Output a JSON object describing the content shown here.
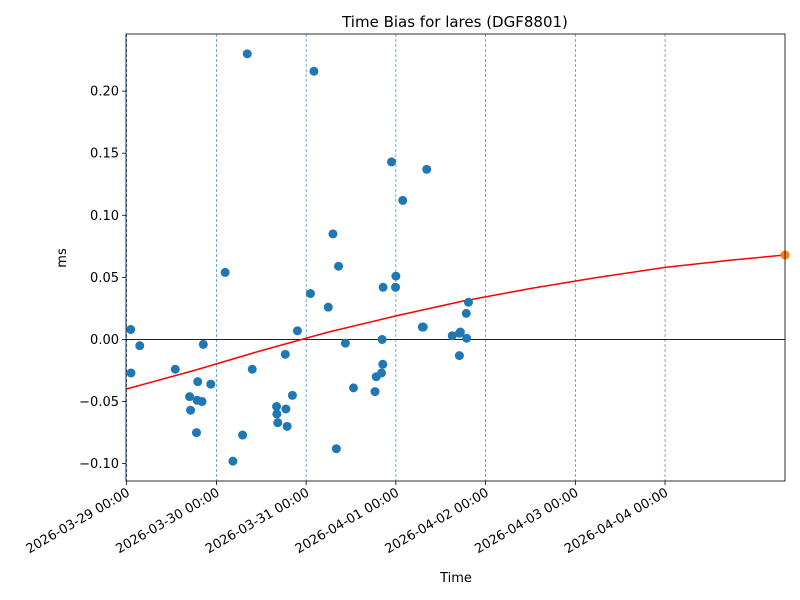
{
  "chart_data": {
    "type": "scatter",
    "title": "Time Bias for lares (DGF8801)",
    "xlabel": "Time",
    "ylabel": "ms",
    "x_axis_type": "datetime",
    "xlim": [
      "2026-03-28 23:49",
      "2026-04-05 08:05"
    ],
    "ylim": [
      -0.114,
      0.246
    ],
    "x_ticks": [
      "2026-03-29 00:00",
      "2026-03-30 00:00",
      "2026-03-31 00:00",
      "2026-04-01 00:00",
      "2026-04-02 00:00",
      "2026-04-03 00:00",
      "2026-04-04 00:00"
    ],
    "y_ticks": [
      -0.1,
      -0.05,
      0.0,
      0.05,
      0.1,
      0.15,
      0.2
    ],
    "y_tick_labels": [
      "−0.10",
      "−0.05",
      "0.00",
      "0.05",
      "0.10",
      "0.15",
      "0.20"
    ],
    "grid": "vertical dashed lines at x ticks",
    "zero_line": true,
    "colors": {
      "points": "#1f77b4",
      "fit": "#ff0000",
      "endpoint": "#ff7f0e",
      "grid": "#1f77b4"
    },
    "series": [
      {
        "kind": "points",
        "points": [
          {
            "x": "2026-03-29 01:05",
            "y": 0.008
          },
          {
            "x": "2026-03-29 01:10",
            "y": -0.027
          },
          {
            "x": "2026-03-29 03:30",
            "y": -0.005
          },
          {
            "x": "2026-03-29 13:00",
            "y": -0.024
          },
          {
            "x": "2026-03-29 16:50",
            "y": -0.046
          },
          {
            "x": "2026-03-29 17:05",
            "y": -0.057
          },
          {
            "x": "2026-03-29 18:40",
            "y": -0.075
          },
          {
            "x": "2026-03-29 18:50",
            "y": -0.049
          },
          {
            "x": "2026-03-29 19:00",
            "y": -0.034
          },
          {
            "x": "2026-03-29 20:10",
            "y": -0.05
          },
          {
            "x": "2026-03-29 20:30",
            "y": -0.004
          },
          {
            "x": "2026-03-29 22:30",
            "y": -0.036
          },
          {
            "x": "2026-03-30 02:20",
            "y": 0.054
          },
          {
            "x": "2026-03-30 04:25",
            "y": -0.098
          },
          {
            "x": "2026-03-30 07:00",
            "y": -0.077
          },
          {
            "x": "2026-03-30 08:15",
            "y": 0.23
          },
          {
            "x": "2026-03-30 09:35",
            "y": -0.024
          },
          {
            "x": "2026-03-30 16:05",
            "y": -0.054
          },
          {
            "x": "2026-03-30 16:10",
            "y": -0.06
          },
          {
            "x": "2026-03-30 16:25",
            "y": -0.067
          },
          {
            "x": "2026-03-30 18:25",
            "y": -0.012
          },
          {
            "x": "2026-03-30 18:35",
            "y": -0.056
          },
          {
            "x": "2026-03-30 18:55",
            "y": -0.07
          },
          {
            "x": "2026-03-30 20:20",
            "y": -0.045
          },
          {
            "x": "2026-03-30 21:40",
            "y": 0.007
          },
          {
            "x": "2026-03-31 01:10",
            "y": 0.037
          },
          {
            "x": "2026-03-31 02:05",
            "y": 0.216
          },
          {
            "x": "2026-03-31 05:55",
            "y": 0.026
          },
          {
            "x": "2026-03-31 07:10",
            "y": 0.085
          },
          {
            "x": "2026-03-31 08:05",
            "y": -0.088
          },
          {
            "x": "2026-03-31 08:40",
            "y": 0.059
          },
          {
            "x": "2026-03-31 10:30",
            "y": -0.003
          },
          {
            "x": "2026-03-31 12:40",
            "y": -0.039
          },
          {
            "x": "2026-03-31 18:25",
            "y": -0.042
          },
          {
            "x": "2026-03-31 18:45",
            "y": -0.03
          },
          {
            "x": "2026-03-31 20:10",
            "y": -0.027
          },
          {
            "x": "2026-03-31 20:20",
            "y": 0.0
          },
          {
            "x": "2026-03-31 20:30",
            "y": -0.02
          },
          {
            "x": "2026-03-31 20:35",
            "y": 0.042
          },
          {
            "x": "2026-03-31 22:50",
            "y": 0.143
          },
          {
            "x": "2026-03-31 23:55",
            "y": 0.042
          },
          {
            "x": "2026-04-01 00:00",
            "y": 0.051
          },
          {
            "x": "2026-04-01 01:50",
            "y": 0.112
          },
          {
            "x": "2026-04-01 07:05",
            "y": 0.01
          },
          {
            "x": "2026-04-01 07:20",
            "y": 0.01
          },
          {
            "x": "2026-04-01 08:15",
            "y": 0.137
          },
          {
            "x": "2026-04-01 15:05",
            "y": 0.003
          },
          {
            "x": "2026-04-01 17:00",
            "y": -0.013
          },
          {
            "x": "2026-04-01 17:00",
            "y": 0.005
          },
          {
            "x": "2026-04-01 17:15",
            "y": 0.006
          },
          {
            "x": "2026-04-01 18:50",
            "y": 0.021
          },
          {
            "x": "2026-04-01 18:55",
            "y": 0.001
          },
          {
            "x": "2026-04-01 19:25",
            "y": 0.03
          }
        ]
      },
      {
        "kind": "fit",
        "x": [
          "2026-03-28 23:49",
          "2026-03-29 18:00",
          "2026-03-30 12:00",
          "2026-03-31 06:00",
          "2026-04-01 00:00",
          "2026-04-01 18:00",
          "2026-04-02 12:00",
          "2026-04-03 06:00",
          "2026-04-04 00:00",
          "2026-04-04 18:00",
          "2026-04-05 08:05"
        ],
        "y": [
          -0.04,
          -0.025,
          -0.009,
          0.006,
          0.019,
          0.031,
          0.041,
          0.05,
          0.058,
          0.064,
          0.068
        ]
      },
      {
        "kind": "endpoint",
        "points": [
          {
            "x": "2026-04-05 08:05",
            "y": 0.068
          }
        ]
      }
    ]
  }
}
